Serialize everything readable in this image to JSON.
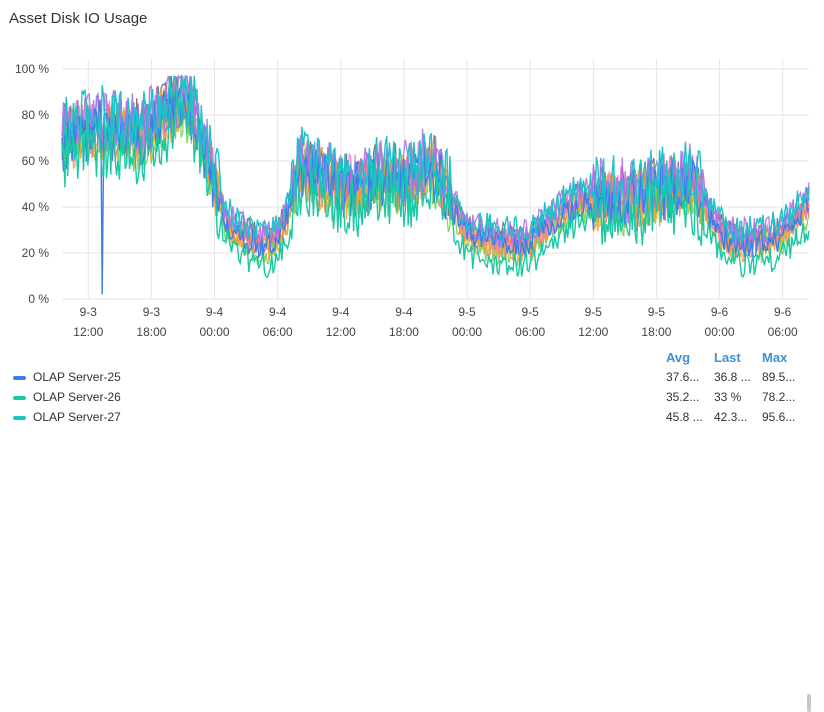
{
  "panel": {
    "title": "Asset Disk IO Usage"
  },
  "chart_data": {
    "type": "line",
    "title": "Asset Disk IO Usage",
    "xlabel": "",
    "ylabel": "",
    "ylim": [
      0,
      100
    ],
    "y_ticks": [
      "0 %",
      "20 %",
      "40 %",
      "60 %",
      "80 %",
      "100 %"
    ],
    "x_ticks": [
      {
        "day": "9-3",
        "time": "12:00",
        "h": 12
      },
      {
        "day": "9-3",
        "time": "18:00",
        "h": 18
      },
      {
        "day": "9-4",
        "time": "00:00",
        "h": 24
      },
      {
        "day": "9-4",
        "time": "06:00",
        "h": 30
      },
      {
        "day": "9-4",
        "time": "12:00",
        "h": 36
      },
      {
        "day": "9-4",
        "time": "18:00",
        "h": 42
      },
      {
        "day": "9-5",
        "time": "00:00",
        "h": 48
      },
      {
        "day": "9-5",
        "time": "06:00",
        "h": 54
      },
      {
        "day": "9-5",
        "time": "12:00",
        "h": 60
      },
      {
        "day": "9-5",
        "time": "18:00",
        "h": 66
      },
      {
        "day": "9-6",
        "time": "00:00",
        "h": 72
      },
      {
        "day": "9-6",
        "time": "06:00",
        "h": 78
      }
    ],
    "x_range_hours": [
      9.5,
      80.5
    ],
    "grid": true,
    "legend_position": "bottom",
    "profile": {
      "hours": [
        9.5,
        11,
        13,
        15,
        17,
        18.5,
        20,
        21,
        22,
        23,
        24,
        25,
        26,
        27,
        28,
        29,
        30,
        31,
        32,
        34,
        36,
        38,
        40,
        42,
        44,
        45,
        46,
        47,
        48,
        49,
        50,
        51,
        52,
        53,
        54,
        55,
        56,
        58,
        60,
        62,
        64,
        66,
        68,
        69,
        70,
        71,
        72,
        73,
        74,
        75,
        76,
        77,
        78,
        79,
        80.5
      ],
      "values": [
        66,
        70,
        72,
        70,
        68,
        74,
        80,
        84,
        76,
        62,
        48,
        32,
        26,
        24,
        22,
        21,
        24,
        34,
        55,
        50,
        46,
        46,
        50,
        48,
        54,
        52,
        44,
        34,
        26,
        24,
        23,
        21,
        22,
        21,
        22,
        26,
        30,
        38,
        40,
        41,
        40,
        44,
        46,
        48,
        44,
        34,
        26,
        23,
        21,
        22,
        22,
        23,
        25,
        30,
        38
      ]
    },
    "series": [
      {
        "name": "OLAP Server-25",
        "color": "#3d7fe6",
        "avg": "37.6...",
        "last": "36.8 ...",
        "max": "89.5..."
      },
      {
        "name": "OLAP Server-26",
        "color": "#19c9a3",
        "avg": "35.2...",
        "last": "33 %",
        "max": "78.2..."
      },
      {
        "name": "OLAP Server-27",
        "color": "#1bc4c8",
        "avg": "45.8 ...",
        "last": "42.3...",
        "max": "95.6..."
      }
    ],
    "background_series": [
      {
        "color": "#6b6b6b",
        "offset": 6
      },
      {
        "color": "#f6c62c",
        "offset": 3
      },
      {
        "color": "#ff6d6d",
        "offset": 2
      },
      {
        "color": "#f07fd1",
        "offset": 4
      },
      {
        "color": "#7bd04f",
        "offset": -1
      },
      {
        "color": "#ff9a3c",
        "offset": 1
      },
      {
        "color": "#8c7cf0",
        "offset": 5
      },
      {
        "color": "#b46de8",
        "offset": 8
      }
    ]
  },
  "legend": {
    "columns": {
      "avg": "Avg",
      "last": "Last",
      "max": "Max"
    }
  }
}
